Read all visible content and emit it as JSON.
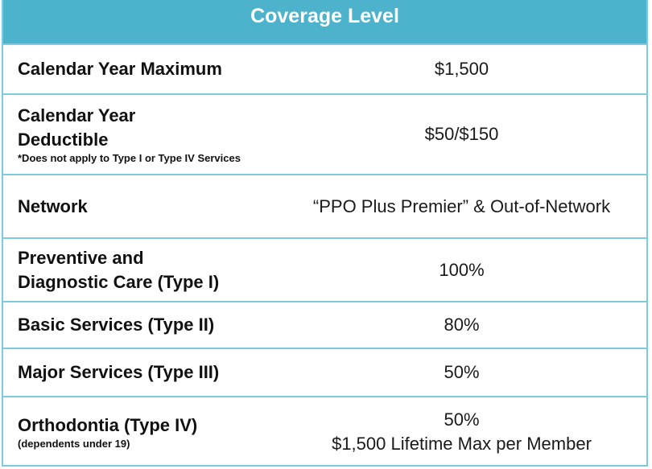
{
  "header": {
    "title": "Coverage Level"
  },
  "rows": [
    {
      "label": "Calendar Year Maximum",
      "value": "$1,500"
    },
    {
      "label_line1": "Calendar Year",
      "label_line2": "Deductible",
      "note": "*Does not apply to Type I or Type IV Services",
      "value": "$50/$150"
    },
    {
      "label": "Network",
      "value": "“PPO Plus Premier” & Out-of-Network"
    },
    {
      "label_line1": "Preventive and",
      "label_line2": "Diagnostic Care (Type I)",
      "value": "100%"
    },
    {
      "label": "Basic Services (Type II)",
      "value": "80%"
    },
    {
      "label": "Major Services (Type III)",
      "value": "50%"
    },
    {
      "label": "Orthodontia (Type IV)",
      "note": "(dependents under 19)",
      "value_line1": "50%",
      "value_line2": "$1,500 Lifetime Max per Member"
    }
  ]
}
